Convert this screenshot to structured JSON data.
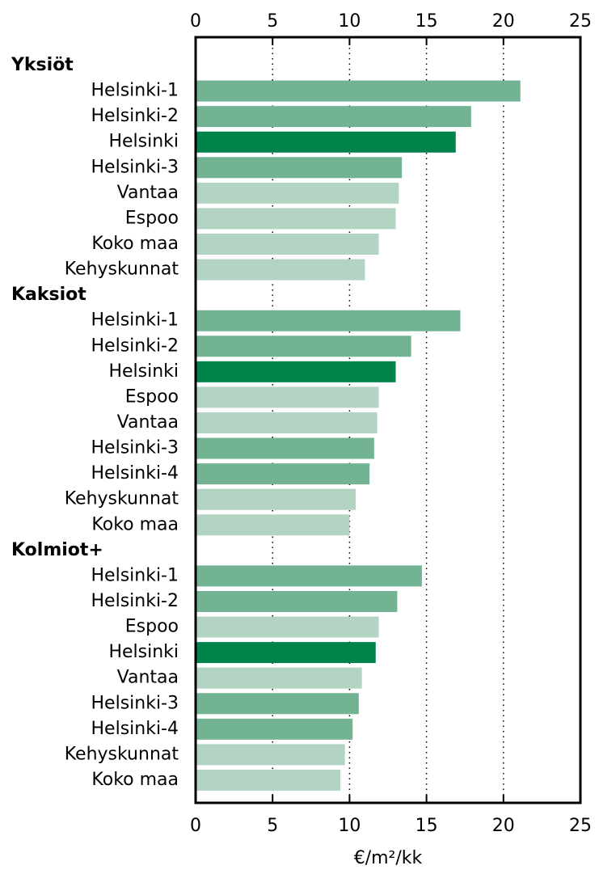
{
  "chart_data": {
    "type": "grouped-hbar",
    "x_label": "€/m²/kk",
    "xlim": [
      0,
      25
    ],
    "xticks": [
      0,
      5,
      10,
      15,
      20,
      25
    ],
    "grid": true,
    "groups": [
      {
        "name": "Yksiöt",
        "categories": [
          "Helsinki-1",
          "Helsinki-2",
          "Helsinki",
          "Helsinki-3",
          "Vantaa",
          "Espoo",
          "Koko maa",
          "Kehyskunnat"
        ],
        "values": [
          21.1,
          17.9,
          16.9,
          13.4,
          13.2,
          13.0,
          11.9,
          11.0
        ],
        "colors": [
          "#72b393",
          "#72b393",
          "#00834a",
          "#72b393",
          "#b3d4c3",
          "#b3d4c3",
          "#b3d4c3",
          "#b3d4c3"
        ]
      },
      {
        "name": "Kaksiot",
        "categories": [
          "Helsinki-1",
          "Helsinki-2",
          "Helsinki",
          "Espoo",
          "Vantaa",
          "Helsinki-3",
          "Helsinki-4",
          "Kehyskunnat",
          "Koko maa"
        ],
        "values": [
          17.2,
          14.0,
          13.0,
          11.9,
          11.8,
          11.6,
          11.3,
          10.4,
          10.0
        ],
        "colors": [
          "#72b393",
          "#72b393",
          "#00834a",
          "#b3d4c3",
          "#b3d4c3",
          "#72b393",
          "#72b393",
          "#b3d4c3",
          "#b3d4c3"
        ]
      },
      {
        "name": "Kolmiot+",
        "categories": [
          "Helsinki-1",
          "Helsinki-2",
          "Espoo",
          "Helsinki",
          "Vantaa",
          "Helsinki-3",
          "Helsinki-4",
          "Kehyskunnat",
          "Koko maa"
        ],
        "values": [
          14.7,
          13.1,
          11.9,
          11.7,
          10.8,
          10.6,
          10.2,
          9.7,
          9.4
        ],
        "colors": [
          "#72b393",
          "#72b393",
          "#b3d4c3",
          "#00834a",
          "#b3d4c3",
          "#72b393",
          "#72b393",
          "#b3d4c3",
          "#b3d4c3"
        ]
      }
    ]
  }
}
